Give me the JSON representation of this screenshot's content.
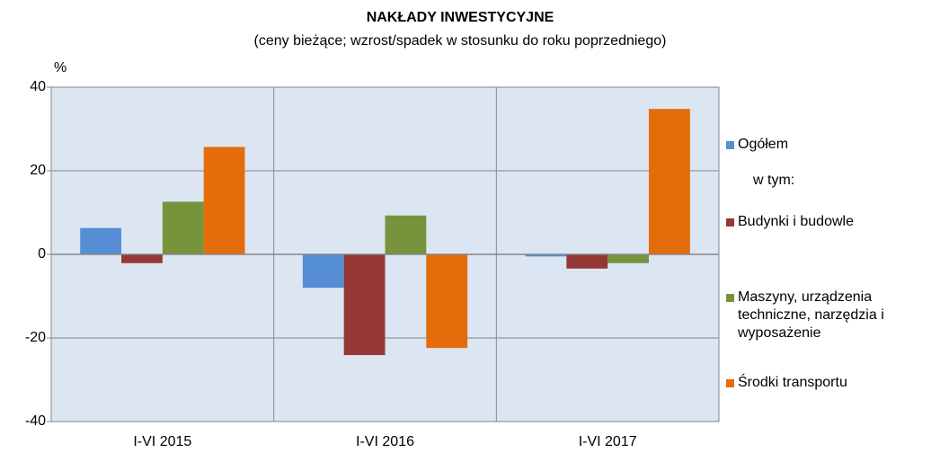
{
  "chart_data": {
    "type": "bar",
    "title": "NAKŁADY  INWESTYCYJNE",
    "subtitle": "(ceny bieżące; wzrost/spadek w stosunku do roku poprzedniego)",
    "y_label": "%",
    "legend_note": "w tym:",
    "categories": [
      "I-VI 2015",
      "I-VI 2016",
      "I-VI 2017"
    ],
    "series": [
      {
        "name": "Ogółem",
        "color": "#558ed5",
        "values": [
          6.3,
          -8.0,
          -0.5
        ]
      },
      {
        "name": "Budynki i budowle",
        "color": "#953735",
        "values": [
          -2.1,
          -24.1,
          -3.4
        ]
      },
      {
        "name": "Maszyny, urządzenia techniczne, narzędzia i wyposażenie",
        "color": "#77933c",
        "values": [
          12.6,
          9.3,
          -2.1
        ]
      },
      {
        "name": "Środki transportu",
        "color": "#e46c0a",
        "values": [
          25.7,
          -22.4,
          34.8
        ]
      }
    ],
    "ylim": [
      -40,
      40
    ],
    "yticks": [
      -40,
      -20,
      0,
      20,
      40
    ],
    "grid": true
  }
}
